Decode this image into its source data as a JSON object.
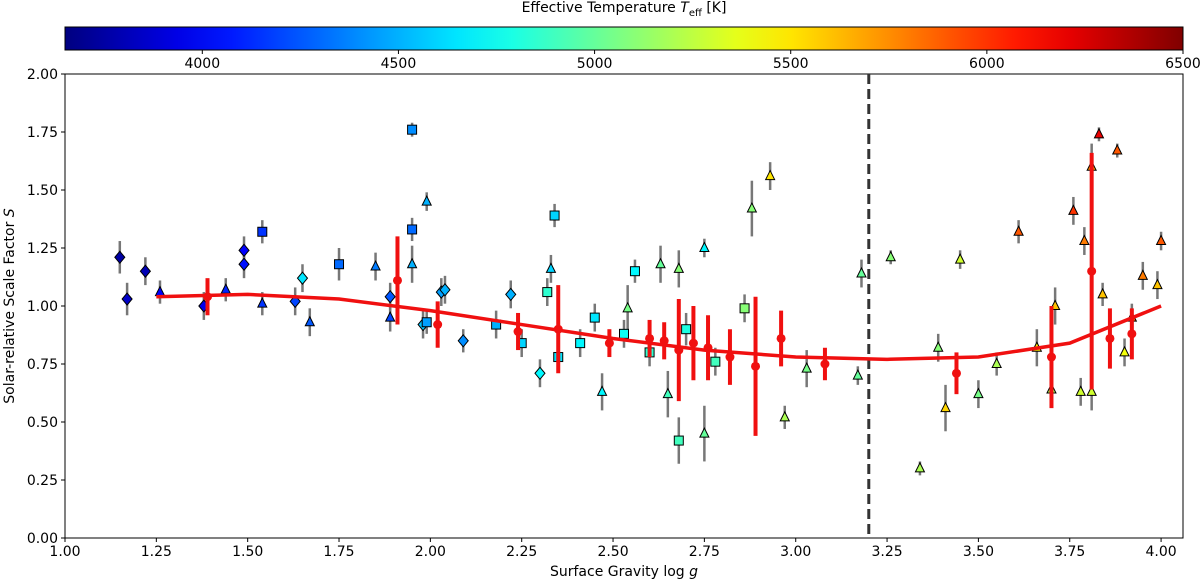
{
  "chart_data": {
    "type": "scatter",
    "colorbar": {
      "label": "Effective Temperature",
      "label_var": "T",
      "label_sub": "eff",
      "label_unit": "[K]",
      "clim": [
        3650,
        6500
      ],
      "ticks": [
        4000,
        4500,
        5000,
        5500,
        6000,
        6500
      ],
      "colormap": "jet"
    },
    "xlabel": "Surface Gravity log",
    "xlabel_var": "g",
    "ylabel": "Solar-relative Scale Factor",
    "ylabel_var": "S",
    "xlim": [
      1.0,
      4.06
    ],
    "ylim": [
      0,
      2
    ],
    "xticks": [
      {
        "value": 1,
        "label": "1.00"
      },
      {
        "value": 1.25,
        "label": "1.25"
      },
      {
        "value": 1.5,
        "label": "1.50"
      },
      {
        "value": 1.75,
        "label": "1.75"
      },
      {
        "value": 2,
        "label": "2.00"
      },
      {
        "value": 2.25,
        "label": "2.25"
      },
      {
        "value": 2.5,
        "label": "2.50"
      },
      {
        "value": 2.75,
        "label": "2.75"
      },
      {
        "value": 3,
        "label": "3.00"
      },
      {
        "value": 3.25,
        "label": "3.25"
      },
      {
        "value": 3.5,
        "label": "3.50"
      },
      {
        "value": 3.75,
        "label": "3.75"
      },
      {
        "value": 4,
        "label": "4.00"
      }
    ],
    "yticks": [
      {
        "value": 0,
        "label": "0.00"
      },
      {
        "value": 0.25,
        "label": "0.25"
      },
      {
        "value": 0.5,
        "label": "0.50"
      },
      {
        "value": 0.75,
        "label": "0.75"
      },
      {
        "value": 1,
        "label": "1.00"
      },
      {
        "value": 1.25,
        "label": "1.25"
      },
      {
        "value": 1.5,
        "label": "1.50"
      },
      {
        "value": 1.75,
        "label": "1.75"
      },
      {
        "value": 2,
        "label": "2.00"
      }
    ],
    "stars": {
      "x": [
        1.15,
        1.17,
        1.22,
        1.38,
        1.49,
        1.49,
        1.63,
        1.65,
        1.89,
        1.98,
        2.03,
        2.04,
        2.22,
        2.3,
        2.09,
        1.54,
        1.75,
        1.95,
        1.95,
        1.99,
        2.34,
        2.32,
        2.18,
        2.25,
        2.35,
        2.45,
        2.56,
        2.68,
        2.7,
        2.6,
        2.86,
        2.78,
        2.53,
        2.41,
        1.26,
        1.44,
        1.54,
        1.67,
        1.85,
        1.89,
        1.95,
        1.99,
        2.33,
        2.47,
        2.54,
        2.63,
        2.65,
        2.68,
        2.75,
        2.75,
        2.88,
        2.93,
        2.97,
        3.03,
        3.18,
        3.17,
        3.26,
        3.34,
        3.39,
        3.41,
        3.45,
        3.5,
        3.55,
        3.61,
        3.66,
        3.7,
        3.71,
        3.76,
        3.79,
        3.81,
        3.83,
        3.81,
        3.88,
        3.84,
        3.9,
        3.95,
        3.99,
        4.0,
        3.92,
        3.78
      ],
      "values": [
        1.21,
        1.03,
        1.15,
        1.0,
        1.24,
        1.18,
        1.02,
        1.12,
        1.04,
        0.92,
        1.06,
        1.07,
        1.05,
        0.71,
        0.85,
        1.32,
        1.18,
        1.76,
        1.33,
        0.93,
        1.39,
        1.06,
        0.92,
        0.84,
        0.78,
        0.95,
        1.15,
        0.42,
        0.9,
        0.8,
        0.99,
        0.76,
        0.88,
        0.84,
        1.06,
        1.07,
        1.01,
        0.93,
        1.17,
        0.95,
        1.18,
        1.45,
        1.16,
        0.63,
        0.99,
        1.18,
        0.62,
        1.16,
        1.25,
        0.45,
        1.42,
        1.56,
        0.52,
        0.73,
        1.14,
        0.7,
        1.21,
        0.3,
        0.82,
        0.56,
        1.2,
        0.62,
        0.75,
        1.32,
        0.82,
        0.64,
        1.0,
        1.41,
        1.28,
        1.6,
        1.74,
        0.63,
        1.67,
        1.05,
        0.8,
        1.13,
        1.09,
        1.28,
        0.95,
        0.63
      ],
      "errors": [
        0.07,
        0.07,
        0.06,
        0.06,
        0.06,
        0.06,
        0.06,
        0.06,
        0.06,
        0.06,
        0.06,
        0.06,
        0.06,
        0.06,
        0.05,
        0.05,
        0.07,
        0.03,
        0.05,
        0.05,
        0.05,
        0.06,
        0.06,
        0.06,
        0.06,
        0.06,
        0.05,
        0.1,
        0.07,
        0.06,
        0.06,
        0.06,
        0.06,
        0.06,
        0.05,
        0.05,
        0.05,
        0.06,
        0.06,
        0.06,
        0.08,
        0.04,
        0.06,
        0.08,
        0.1,
        0.08,
        0.1,
        0.08,
        0.04,
        0.12,
        0.12,
        0.06,
        0.05,
        0.08,
        0.06,
        0.04,
        0.03,
        0.03,
        0.06,
        0.1,
        0.04,
        0.06,
        0.05,
        0.05,
        0.08,
        0.06,
        0.08,
        0.06,
        0.06,
        0.1,
        0.03,
        0.08,
        0.03,
        0.05,
        0.06,
        0.06,
        0.06,
        0.04,
        0.06,
        0.06
      ],
      "teff": [
        3750,
        3850,
        3800,
        3950,
        4000,
        4050,
        4200,
        4650,
        4250,
        4550,
        4450,
        4500,
        4500,
        4700,
        4400,
        4150,
        4300,
        4400,
        4300,
        4450,
        4600,
        4850,
        4500,
        4600,
        4650,
        4650,
        4700,
        4900,
        4800,
        4850,
        5100,
        4900,
        4750,
        4700,
        4000,
        4100,
        4150,
        4250,
        4350,
        4200,
        4500,
        4500,
        4600,
        4700,
        5050,
        5000,
        4900,
        5100,
        4700,
        5000,
        5100,
        5500,
        5200,
        5050,
        5000,
        5000,
        5100,
        5200,
        5100,
        5550,
        5300,
        5050,
        5200,
        5900,
        5500,
        5200,
        5600,
        6000,
        5800,
        5700,
        6200,
        5300,
        5900,
        5600,
        5400,
        5800,
        5600,
        5900,
        5900,
        5300
      ],
      "markers": [
        "diamond",
        "diamond",
        "diamond",
        "diamond",
        "diamond",
        "diamond",
        "diamond",
        "diamond",
        "diamond",
        "diamond",
        "diamond",
        "diamond",
        "diamond",
        "diamond",
        "diamond",
        "square",
        "square",
        "square",
        "square",
        "square",
        "square",
        "square",
        "square",
        "square",
        "square",
        "square",
        "square",
        "square",
        "square",
        "square",
        "square",
        "square",
        "square",
        "square",
        "triangle",
        "triangle",
        "triangle",
        "triangle",
        "triangle",
        "triangle",
        "triangle",
        "triangle",
        "triangle",
        "triangle",
        "triangle",
        "triangle",
        "triangle",
        "triangle",
        "triangle",
        "triangle",
        "triangle",
        "triangle",
        "triangle",
        "triangle",
        "triangle",
        "triangle",
        "triangle",
        "triangle",
        "triangle",
        "triangle",
        "triangle",
        "triangle",
        "triangle",
        "triangle",
        "triangle",
        "triangle",
        "triangle",
        "triangle",
        "triangle",
        "triangle",
        "triangle",
        "triangle",
        "triangle",
        "triangle",
        "triangle",
        "triangle",
        "triangle",
        "triangle",
        "triangle",
        "triangle"
      ]
    },
    "bins": {
      "color": "#f01010",
      "x": [
        1.39,
        1.91,
        2.02,
        2.24,
        2.35,
        2.49,
        2.6,
        2.64,
        2.68,
        2.72,
        2.76,
        2.82,
        2.89,
        2.96,
        3.08,
        3.44,
        3.7,
        3.81,
        3.86,
        3.92
      ],
      "values": [
        1.04,
        1.11,
        0.92,
        0.89,
        0.9,
        0.84,
        0.86,
        0.85,
        0.81,
        0.84,
        0.82,
        0.78,
        0.74,
        0.86,
        0.75,
        0.71,
        0.78,
        1.15,
        0.86,
        0.88
      ],
      "errors": [
        0.08,
        0.19,
        0.1,
        0.08,
        0.19,
        0.06,
        0.08,
        0.08,
        0.22,
        0.16,
        0.14,
        0.12,
        0.3,
        0.12,
        0.07,
        0.09,
        0.22,
        0.51,
        0.13,
        0.11
      ]
    },
    "fit": {
      "color": "#f01010",
      "x": [
        1.25,
        1.5,
        1.75,
        2.0,
        2.25,
        2.5,
        2.75,
        3.0,
        3.25,
        3.5,
        3.75,
        4.0
      ],
      "values": [
        1.04,
        1.05,
        1.03,
        0.98,
        0.92,
        0.86,
        0.81,
        0.78,
        0.77,
        0.78,
        0.84,
        1.0
      ]
    },
    "vline": 3.2
  }
}
